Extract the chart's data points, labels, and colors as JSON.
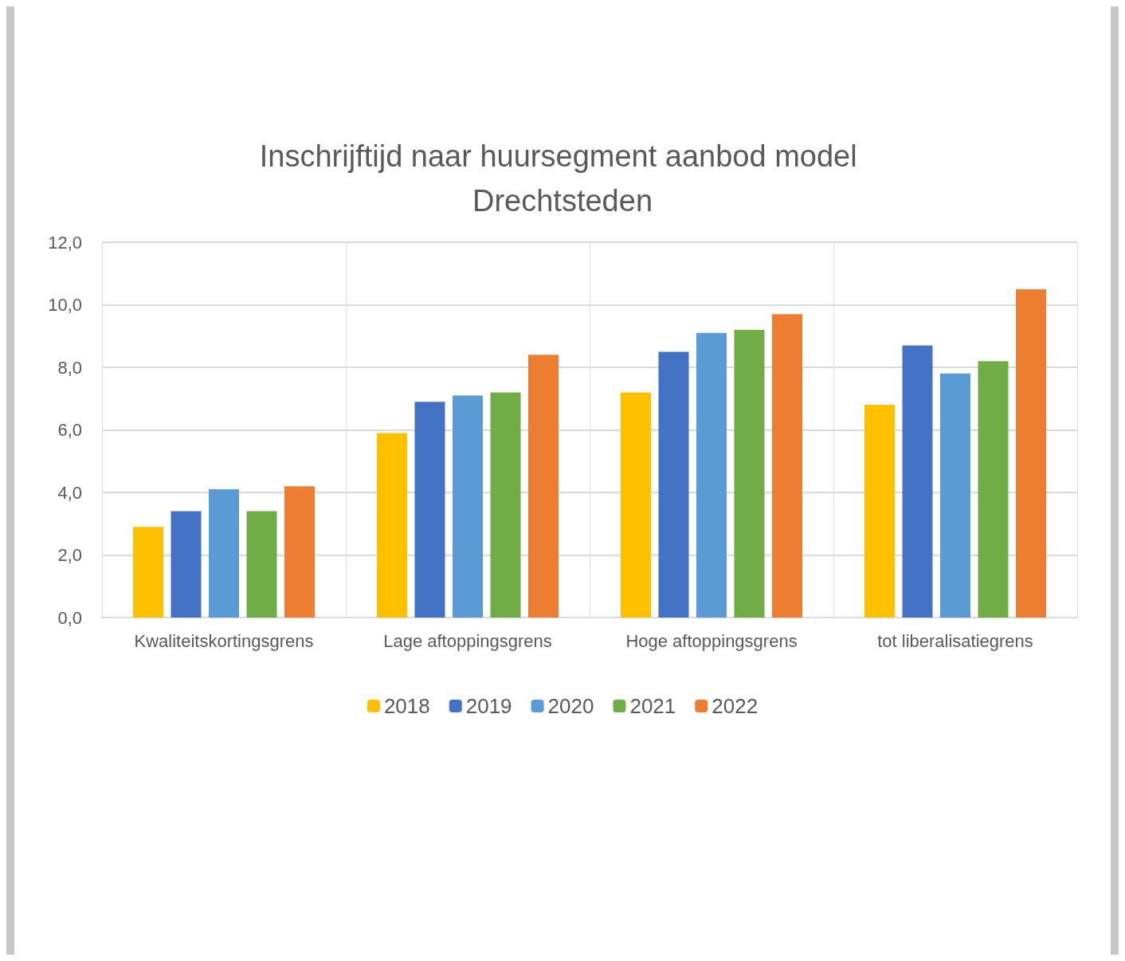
{
  "chart_data": {
    "type": "bar",
    "title": "Inschrijftijd naar huursegment aanbod model Drechtsteden",
    "categories": [
      "Kwaliteitskortingsgrens",
      "Lage aftoppingsgrens",
      "Hoge aftoppingsgrens",
      "tot liberalisatiegrens"
    ],
    "series": [
      {
        "name": "2018",
        "color": "#ffc000",
        "values": [
          2.9,
          5.9,
          7.2,
          6.8
        ]
      },
      {
        "name": "2019",
        "color": "#4472c4",
        "values": [
          3.4,
          6.9,
          8.5,
          8.7
        ]
      },
      {
        "name": "2020",
        "color": "#5b9bd5",
        "values": [
          4.1,
          7.1,
          9.1,
          7.8
        ]
      },
      {
        "name": "2021",
        "color": "#70ad47",
        "values": [
          3.4,
          7.2,
          9.2,
          8.2
        ]
      },
      {
        "name": "2022",
        "color": "#ed7d31",
        "values": [
          4.2,
          8.4,
          9.7,
          10.5
        ]
      }
    ],
    "ylim": [
      0,
      12
    ],
    "yticks": [
      {
        "value": 0,
        "label": "0,0"
      },
      {
        "value": 2,
        "label": "2,0"
      },
      {
        "value": 4,
        "label": "4,0"
      },
      {
        "value": 6,
        "label": "6,0"
      },
      {
        "value": 8,
        "label": "8,0"
      },
      {
        "value": 10,
        "label": "10,0"
      },
      {
        "value": 12,
        "label": "12,0"
      }
    ],
    "grid": true,
    "legend": "bottom"
  }
}
